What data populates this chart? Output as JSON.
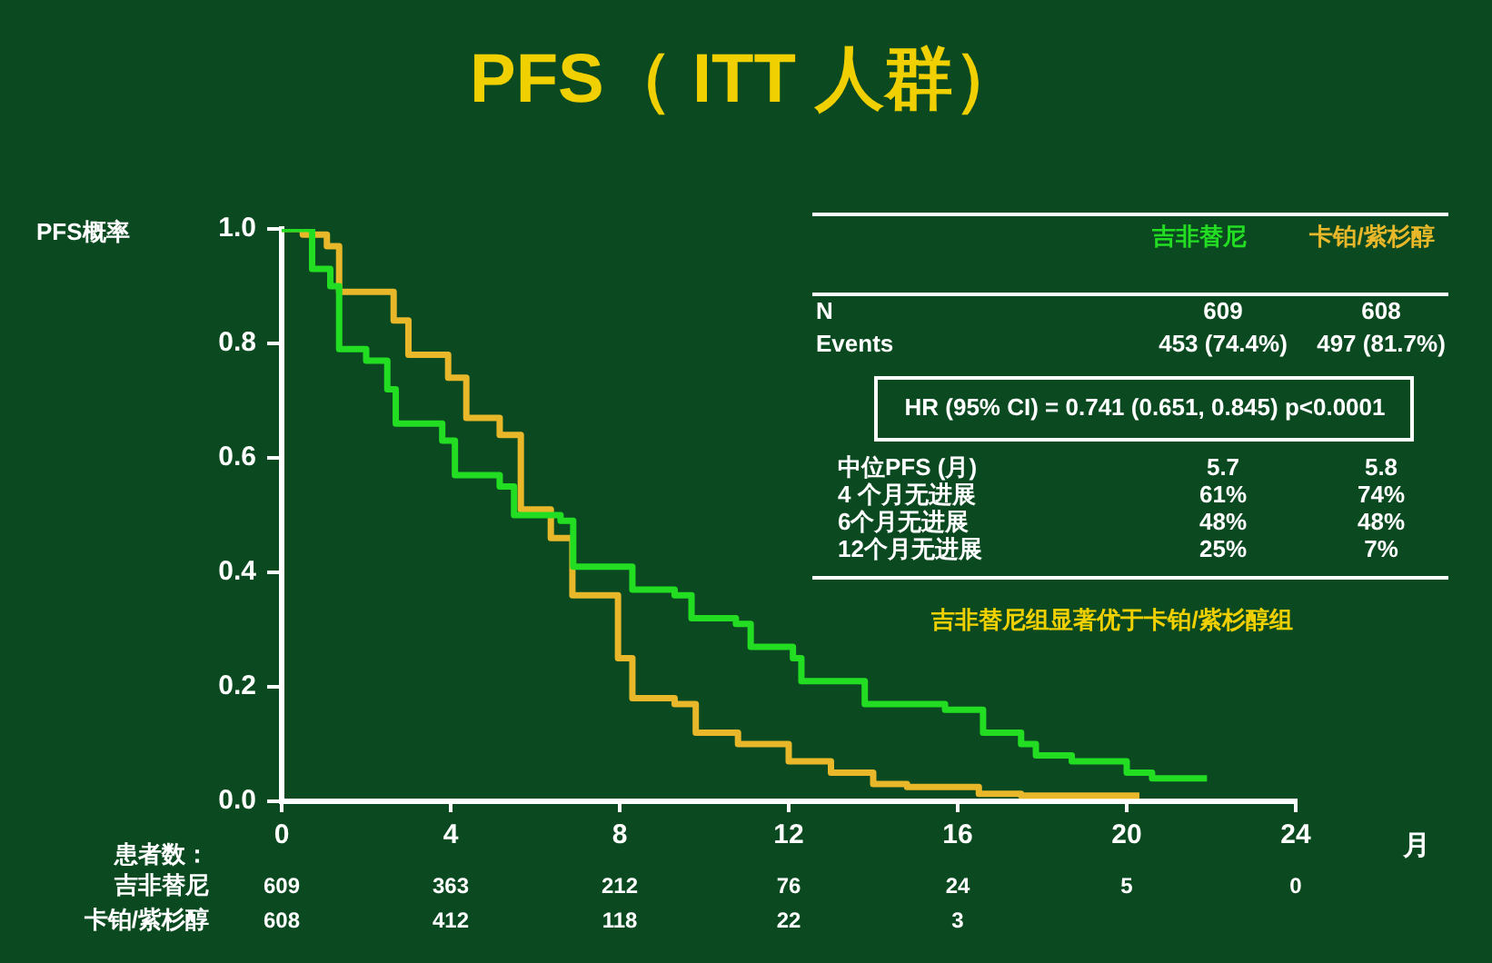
{
  "chart_data": {
    "type": "step",
    "title": "PFS（ ITT 人群）",
    "xlabel": "月",
    "ylabel": "PFS概率",
    "xlim": [
      0,
      24
    ],
    "xticks": [
      0,
      4,
      8,
      12,
      16,
      20,
      24
    ],
    "ylim": [
      0,
      1
    ],
    "yticks": [
      {
        "value": 0,
        "label": "0.0"
      },
      0.2,
      0.4,
      0.6,
      0.8,
      {
        "value": 1,
        "label": "1.0"
      }
    ],
    "grid": false,
    "line_style": "solid",
    "marker": "none",
    "series": [
      {
        "name": "吉非替尼",
        "color": "#22dd22",
        "x": [
          0,
          0.72,
          1.15,
          1.36,
          2.0,
          2.5,
          2.7,
          3.8,
          4.1,
          5.16,
          5.5,
          6.6,
          6.9,
          7.96,
          8.3,
          9.3,
          9.7,
          10.75,
          11.1,
          12.1,
          12.3,
          13.4,
          13.8,
          15.7,
          16.6,
          17.5,
          17.85,
          18.7,
          20,
          20.6,
          21.9
        ],
        "values": [
          1,
          0.93,
          0.9,
          0.79,
          0.77,
          0.72,
          0.66,
          0.63,
          0.57,
          0.55,
          0.5,
          0.49,
          0.41,
          0.41,
          0.37,
          0.36,
          0.32,
          0.31,
          0.27,
          0.25,
          0.21,
          0.21,
          0.17,
          0.16,
          0.12,
          0.1,
          0.08,
          0.07,
          0.05,
          0.04,
          0.04
        ]
      },
      {
        "name": "卡铂/紫杉醇",
        "color": "#e8b82a",
        "x": [
          0,
          0.5,
          1.07,
          1.36,
          2.65,
          3.0,
          3.94,
          4.37,
          5.16,
          5.66,
          6.37,
          6.88,
          7.96,
          8.3,
          9.3,
          9.8,
          10.8,
          12,
          13,
          14,
          14.8,
          16.5,
          17.5,
          20.3
        ],
        "values": [
          1,
          0.99,
          0.97,
          0.89,
          0.84,
          0.78,
          0.74,
          0.67,
          0.64,
          0.51,
          0.46,
          0.36,
          0.25,
          0.18,
          0.17,
          0.12,
          0.1,
          0.07,
          0.05,
          0.03,
          0.025,
          0.013,
          0.01,
          0.01
        ]
      }
    ],
    "annotations": [
      "N",
      "609",
      "608",
      "Events",
      "453 (74.4%)",
      "497 (81.7%)",
      "HR (95% CI) = 0.741 (0.651, 0.845) p<0.0001",
      "中位PFS (月)",
      "5.7",
      "5.8",
      "4 个月无进展",
      "61%",
      "74%",
      "6个月无进展",
      "48%",
      "48%",
      "12个月无进展",
      "25%",
      "7%",
      "吉非替尼组显著优于卡铂/紫杉醇组",
      "患者数：",
      "吉非替尼",
      "609",
      "363",
      "212",
      "76",
      "24",
      "5",
      "0",
      "卡铂/紫杉醇",
      "608",
      "412",
      "118",
      "22",
      "3"
    ]
  }
}
